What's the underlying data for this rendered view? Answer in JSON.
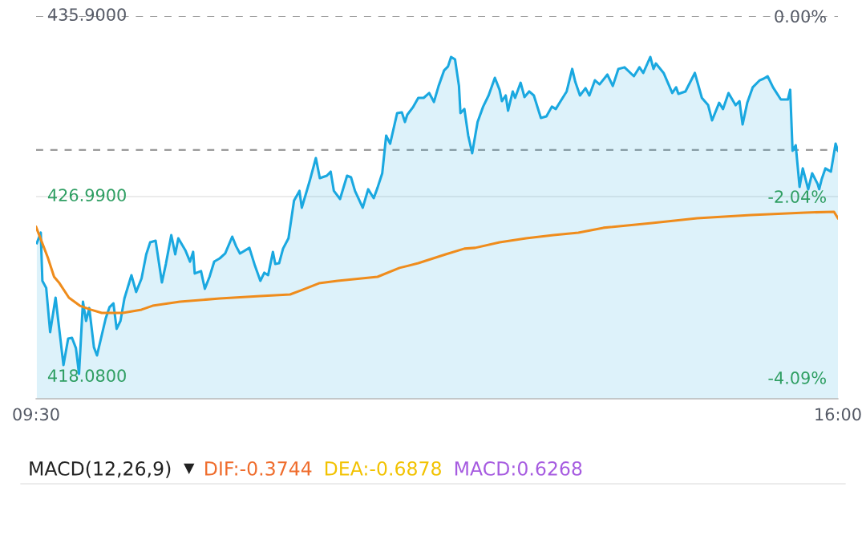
{
  "chart_data": [
    {
      "type": "area",
      "xlim": [
        9.5,
        16.0
      ],
      "xticks": [
        {
          "value": 9.5,
          "label": "09:30"
        },
        {
          "value": 16.0,
          "label": "16:00"
        }
      ],
      "ylim": [
        417.01,
        435.9
      ],
      "yticks": [
        {
          "value": 418.08,
          "label": "418.0800"
        },
        {
          "value": 426.99,
          "label": "426.9900"
        },
        {
          "value": 435.9,
          "label": "435.9000"
        }
      ],
      "y2lim": [
        -4.33,
        0
      ],
      "y2ticks": [
        {
          "value": -4.09,
          "label": "-4.09%"
        },
        {
          "value": -2.04,
          "label": "-2.04%"
        },
        {
          "value": 0,
          "label": "0.00%"
        }
      ],
      "grid": false,
      "legend": false,
      "ref_lines": [
        {
          "axis": "y",
          "value": 435.9,
          "color": "#9a9a9a",
          "line_style": "dashed"
        },
        {
          "axis": "y",
          "value": 429.29,
          "color": "#9a9a9a",
          "line_style": "dashed"
        },
        {
          "axis": "y",
          "value": 426.99,
          "color": "#d8d8d8",
          "line_style": "solid"
        }
      ],
      "series": [
        {
          "type": "area",
          "color": "#1aa8e0",
          "x": [
            9.506,
            9.538,
            9.551,
            9.582,
            9.614,
            9.658,
            9.722,
            9.76,
            9.791,
            9.823,
            9.848,
            9.88,
            9.905,
            9.931,
            9.969,
            9.994,
            10.064,
            10.095,
            10.127,
            10.153,
            10.184,
            10.216,
            10.273,
            10.311,
            10.355,
            10.393,
            10.425,
            10.469,
            10.52,
            10.552,
            10.596,
            10.628,
            10.653,
            10.71,
            10.748,
            10.773,
            10.786,
            10.837,
            10.868,
            10.906,
            10.944,
            10.989,
            11.033,
            11.09,
            11.122,
            11.153,
            11.229,
            11.274,
            11.318,
            11.35,
            11.381,
            11.42,
            11.439,
            11.47,
            11.502,
            11.546,
            11.591,
            11.635,
            11.654,
            11.717,
            11.768,
            11.8,
            11.857,
            11.888,
            11.914,
            11.964,
            12.021,
            12.053,
            12.085,
            12.148,
            12.192,
            12.237,
            12.268,
            12.306,
            12.338,
            12.37,
            12.427,
            12.465,
            12.49,
            12.509,
            12.554,
            12.598,
            12.642,
            12.687,
            12.725,
            12.763,
            12.807,
            12.839,
            12.864,
            12.896,
            12.928,
            12.94,
            12.972,
            13.003,
            13.035,
            13.079,
            13.124,
            13.168,
            13.219,
            13.257,
            13.276,
            13.307,
            13.326,
            13.364,
            13.383,
            13.428,
            13.459,
            13.497,
            13.535,
            13.592,
            13.637,
            13.681,
            13.713,
            13.744,
            13.801,
            13.846,
            13.871,
            13.909,
            13.954,
            13.985,
            14.03,
            14.068,
            14.131,
            14.175,
            14.22,
            14.27,
            14.346,
            14.391,
            14.422,
            14.479,
            14.505,
            14.524,
            14.587,
            14.657,
            14.688,
            14.707,
            14.764,
            14.84,
            14.897,
            14.948,
            14.98,
            15.037,
            15.068,
            15.113,
            15.17,
            15.202,
            15.227,
            15.265,
            15.309,
            15.366,
            15.398,
            15.43,
            15.474,
            15.537,
            15.594,
            15.613,
            15.632,
            15.658,
            15.689,
            15.715,
            15.759,
            15.791,
            15.835,
            15.848,
            15.867,
            15.898,
            15.943,
            15.981,
            16.0
          ],
          "values": [
            424.69,
            425.21,
            422.83,
            422.48,
            420.3,
            422.0,
            418.67,
            419.98,
            420.02,
            419.51,
            418.24,
            421.8,
            420.85,
            421.49,
            419.55,
            419.15,
            420.97,
            421.53,
            421.72,
            420.46,
            420.85,
            421.96,
            423.11,
            422.28,
            422.95,
            424.14,
            424.73,
            424.81,
            422.75,
            423.66,
            425.09,
            424.14,
            424.93,
            424.34,
            423.78,
            424.26,
            423.19,
            423.31,
            422.44,
            423.03,
            423.78,
            423.94,
            424.18,
            425.01,
            424.53,
            424.18,
            424.46,
            423.58,
            422.83,
            423.23,
            423.11,
            424.26,
            423.66,
            423.7,
            424.42,
            424.93,
            426.79,
            427.27,
            426.44,
            427.74,
            428.89,
            427.9,
            428.02,
            428.22,
            427.27,
            426.87,
            428.02,
            427.94,
            427.27,
            426.44,
            427.35,
            426.91,
            427.43,
            428.14,
            430.0,
            429.6,
            431.11,
            431.15,
            430.67,
            431.03,
            431.39,
            431.86,
            431.86,
            432.1,
            431.66,
            432.45,
            433.21,
            433.41,
            433.88,
            433.76,
            432.45,
            431.11,
            431.31,
            430.0,
            429.13,
            430.67,
            431.43,
            431.98,
            432.85,
            432.26,
            431.7,
            431.98,
            431.23,
            432.18,
            431.86,
            432.61,
            431.9,
            432.18,
            431.98,
            430.87,
            430.95,
            431.43,
            431.31,
            431.62,
            432.18,
            433.29,
            432.65,
            431.98,
            432.34,
            431.98,
            432.73,
            432.53,
            433.01,
            432.45,
            433.29,
            433.37,
            432.93,
            433.37,
            433.09,
            433.88,
            433.29,
            433.56,
            433.09,
            432.1,
            432.38,
            432.06,
            432.18,
            433.09,
            431.86,
            431.5,
            430.75,
            431.62,
            431.31,
            432.1,
            431.5,
            431.7,
            430.55,
            431.62,
            432.38,
            432.73,
            432.81,
            432.93,
            432.38,
            431.78,
            431.78,
            432.26,
            429.25,
            429.52,
            427.47,
            428.38,
            427.35,
            428.14,
            427.62,
            427.35,
            427.82,
            428.38,
            428.22,
            429.6,
            429.25
          ]
        },
        {
          "type": "line",
          "color": "#ef8c1c",
          "x": [
            9.5,
            9.595,
            9.646,
            9.69,
            9.766,
            9.855,
            9.943,
            10.032,
            10.203,
            10.355,
            10.444,
            10.666,
            10.989,
            11.318,
            11.559,
            11.648,
            11.793,
            11.945,
            12.268,
            12.446,
            12.598,
            12.82,
            12.972,
            13.06,
            13.257,
            13.472,
            13.694,
            13.896,
            14.099,
            14.492,
            14.859,
            15.296,
            15.734,
            15.968,
            16.0
          ],
          "values": [
            425.49,
            423.98,
            423.03,
            422.71,
            422.0,
            421.6,
            421.41,
            421.25,
            421.25,
            421.41,
            421.6,
            421.8,
            421.96,
            422.08,
            422.16,
            422.36,
            422.71,
            422.83,
            423.03,
            423.47,
            423.7,
            424.14,
            424.42,
            424.46,
            424.73,
            424.93,
            425.09,
            425.21,
            425.45,
            425.68,
            425.92,
            426.08,
            426.2,
            426.24,
            425.92
          ]
        }
      ]
    },
    {
      "type": "other",
      "title": "MACD(12,26,9)",
      "annotations": [
        "DIF:-0.3744",
        "DEA:-0.6878",
        "MACD:0.6268"
      ]
    }
  ]
}
